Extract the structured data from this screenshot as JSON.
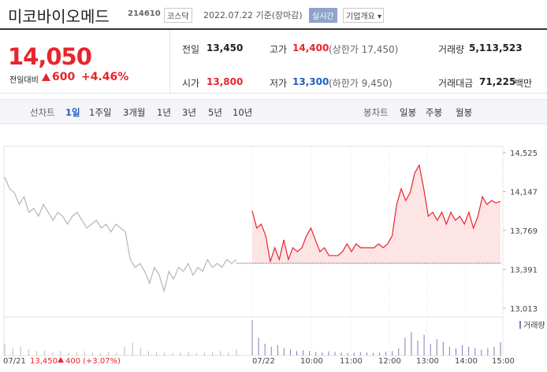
{
  "header": {
    "name": "미코바이오메드",
    "code": "214610",
    "market": "코스닥",
    "date": "2022.07.22 기준(장마감)",
    "realtime": "실시간",
    "company_info": "기업개요"
  },
  "quote": {
    "price": "14,050",
    "change_label": "전일대비",
    "change": "600",
    "change_pct": "+4.46%"
  },
  "stats": [
    {
      "label": "전일",
      "value": "13,450"
    },
    {
      "label": "고가",
      "value": "14,400",
      "note": "(상한가 17,450)"
    },
    {
      "label": "거래량",
      "value": "5,113,523"
    },
    {
      "label": "시가",
      "value": "13,800"
    },
    {
      "label": "저가",
      "value": "13,300",
      "note": "(하한가 9,450)"
    },
    {
      "label": "거래대금",
      "value": "71,225",
      "unit": "백만"
    }
  ],
  "tabs": {
    "line_label": "선차트",
    "line": [
      "1일",
      "1주일",
      "3개월",
      "1년",
      "3년",
      "5년",
      "10년"
    ],
    "candle_label": "봉차트",
    "candle": [
      "일봉",
      "주봉",
      "월봉"
    ]
  },
  "chart_data": {
    "type": "line",
    "ylim": [
      13013,
      14525
    ],
    "yticks": [
      {
        "value": 14525,
        "label": "14,525"
      },
      {
        "value": 14147,
        "label": "14,147"
      },
      {
        "value": 13769,
        "label": "13,769"
      },
      {
        "value": 13391,
        "label": "13,391"
      },
      {
        "value": 13013,
        "label": "13,013"
      }
    ],
    "xlabels": [
      "07/21",
      "07/22",
      "10:00",
      "11:00",
      "12:00",
      "13:00",
      "14:00",
      "15:00"
    ],
    "prev_close": 13450,
    "series": [
      {
        "color": "#b5b5b5",
        "values": [
          14288,
          14174,
          14136,
          14021,
          14097,
          13945,
          13983,
          13907,
          14021,
          13945,
          13868,
          13945,
          13907,
          13830,
          13907,
          13945,
          13868,
          13792,
          13830,
          13868,
          13792,
          13830,
          13754,
          13830,
          13792,
          13754,
          13486,
          13410,
          13448,
          13372,
          13257,
          13410,
          13334,
          13181,
          13372,
          13296,
          13410,
          13372,
          13448,
          13334,
          13410,
          13372,
          13486,
          13410,
          13448,
          13410,
          13486,
          13448,
          13486
        ]
      },
      {
        "color": "#e8242c",
        "values": [
          13960,
          13792,
          13830,
          13716,
          13464,
          13601,
          13486,
          13677,
          13486,
          13601,
          13563,
          13601,
          13716,
          13792,
          13677,
          13563,
          13601,
          13525,
          13525,
          13525,
          13563,
          13639,
          13563,
          13639,
          13601,
          13601,
          13601,
          13601,
          13639,
          13601,
          13639,
          13716,
          14021,
          14174,
          14059,
          14136,
          14326,
          14403,
          14174,
          13907,
          13945,
          13868,
          13945,
          13830,
          13945,
          13868,
          13907,
          13830,
          13945,
          13792,
          13907,
          14097,
          14021,
          14059,
          14036,
          14050
        ]
      }
    ],
    "volume_label": "거래량",
    "volumes": [
      {
        "values": [
          40000,
          25000,
          30000,
          20000,
          15000,
          18000,
          12000,
          15000,
          10000,
          12000,
          14000,
          10000,
          8000,
          12000,
          10000,
          30000,
          45000,
          25000,
          15000,
          12000,
          10000,
          8000,
          10000,
          12000,
          8000,
          10000,
          12000,
          15000,
          10000,
          20000
        ]
      },
      {
        "values": [
          120000,
          60000,
          40000,
          30000,
          35000,
          25000,
          20000,
          15000,
          18000,
          15000,
          12000,
          10000,
          14000,
          12000,
          10000,
          8000,
          10000,
          12000,
          10000,
          8000,
          10000,
          12000,
          15000,
          25000,
          60000,
          80000,
          50000,
          70000,
          40000,
          55000,
          45000,
          30000,
          25000,
          35000,
          30000,
          25000,
          20000,
          25000,
          30000,
          45000
        ]
      }
    ],
    "prev_summary": {
      "close": "13,450",
      "change": "400",
      "pct": "(+3.07%)"
    }
  }
}
